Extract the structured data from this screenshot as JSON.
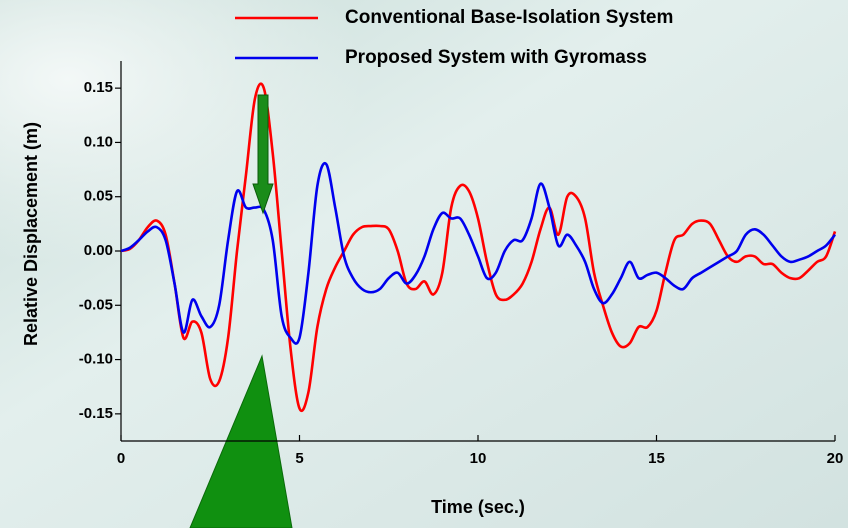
{
  "chart_data": {
    "type": "line",
    "x_label": "Time (sec.)",
    "y_label": "Relative Displacement (m)",
    "xlim": [
      0,
      20
    ],
    "ylim": [
      -0.175,
      0.175
    ],
    "xticks": [
      0,
      5,
      10,
      15,
      20
    ],
    "yticks": [
      0.15,
      {
        "value": 0.1,
        "label": "0.10"
      },
      0.05,
      {
        "value": 0,
        "label": "0.00"
      },
      -0.05,
      {
        "value": -0.1,
        "label": "-0.10"
      },
      -0.15
    ],
    "x": [
      0,
      0.25,
      0.5,
      0.75,
      1,
      1.25,
      1.5,
      1.75,
      2,
      2.25,
      2.5,
      2.75,
      3,
      3.25,
      3.5,
      3.75,
      4,
      4.25,
      4.5,
      4.75,
      5,
      5.25,
      5.5,
      5.75,
      6,
      6.25,
      6.5,
      6.75,
      7,
      7.25,
      7.5,
      7.75,
      8,
      8.25,
      8.5,
      8.75,
      9,
      9.25,
      9.5,
      9.75,
      10,
      10.25,
      10.5,
      10.75,
      11,
      11.25,
      11.5,
      11.75,
      12,
      12.25,
      12.5,
      12.75,
      13,
      13.25,
      13.5,
      13.75,
      14,
      14.25,
      14.5,
      14.75,
      15,
      15.25,
      15.5,
      15.75,
      16,
      16.25,
      16.5,
      16.75,
      17,
      17.25,
      17.5,
      17.75,
      18,
      18.25,
      18.5,
      18.75,
      19,
      19.25,
      19.5,
      19.75,
      20
    ],
    "series": [
      {
        "name": "Conventional Base-Isolation System",
        "color": "#ff0000",
        "values": [
          0,
          0.002,
          0.01,
          0.022,
          0.028,
          0.015,
          -0.03,
          -0.08,
          -0.065,
          -0.075,
          -0.118,
          -0.12,
          -0.08,
          0,
          0.07,
          0.14,
          0.15,
          0.09,
          0,
          -0.09,
          -0.145,
          -0.13,
          -0.07,
          -0.035,
          -0.015,
          0,
          0.015,
          0.022,
          0.023,
          0.023,
          0.02,
          0,
          -0.03,
          -0.035,
          -0.028,
          -0.04,
          -0.02,
          0.04,
          0.06,
          0.055,
          0.03,
          -0.01,
          -0.04,
          -0.045,
          -0.04,
          -0.03,
          -0.01,
          0.02,
          0.04,
          0.015,
          0.05,
          0.05,
          0.03,
          -0.02,
          -0.05,
          -0.075,
          -0.088,
          -0.085,
          -0.07,
          -0.07,
          -0.055,
          -0.02,
          0.01,
          0.015,
          0.025,
          0.028,
          0.025,
          0.01,
          -0.005,
          -0.01,
          -0.005,
          -0.005,
          -0.012,
          -0.012,
          -0.02,
          -0.025,
          -0.025,
          -0.018,
          -0.01,
          -0.005,
          0.018
        ]
      },
      {
        "name": "Proposed System with Gyromass",
        "color": "#0000ee",
        "values": [
          0,
          0.003,
          0.01,
          0.018,
          0.022,
          0.01,
          -0.03,
          -0.075,
          -0.045,
          -0.06,
          -0.07,
          -0.05,
          0.01,
          0.055,
          0.04,
          0.04,
          0.038,
          0.01,
          -0.06,
          -0.08,
          -0.08,
          -0.02,
          0.06,
          0.08,
          0.04,
          -0.005,
          -0.025,
          -0.035,
          -0.038,
          -0.035,
          -0.025,
          -0.02,
          -0.03,
          -0.022,
          -0.005,
          0.02,
          0.035,
          0.03,
          0.03,
          0.015,
          -0.005,
          -0.025,
          -0.02,
          0,
          0.01,
          0.01,
          0.03,
          0.062,
          0.04,
          0.005,
          0.015,
          0.005,
          -0.01,
          -0.035,
          -0.048,
          -0.04,
          -0.025,
          -0.01,
          -0.025,
          -0.022,
          -0.02,
          -0.025,
          -0.032,
          -0.035,
          -0.025,
          -0.02,
          -0.015,
          -0.01,
          -0.005,
          0,
          0.015,
          0.02,
          0.015,
          0.005,
          -0.005,
          -0.01,
          -0.008,
          -0.005,
          0,
          0.005,
          0.015
        ]
      }
    ]
  }
}
